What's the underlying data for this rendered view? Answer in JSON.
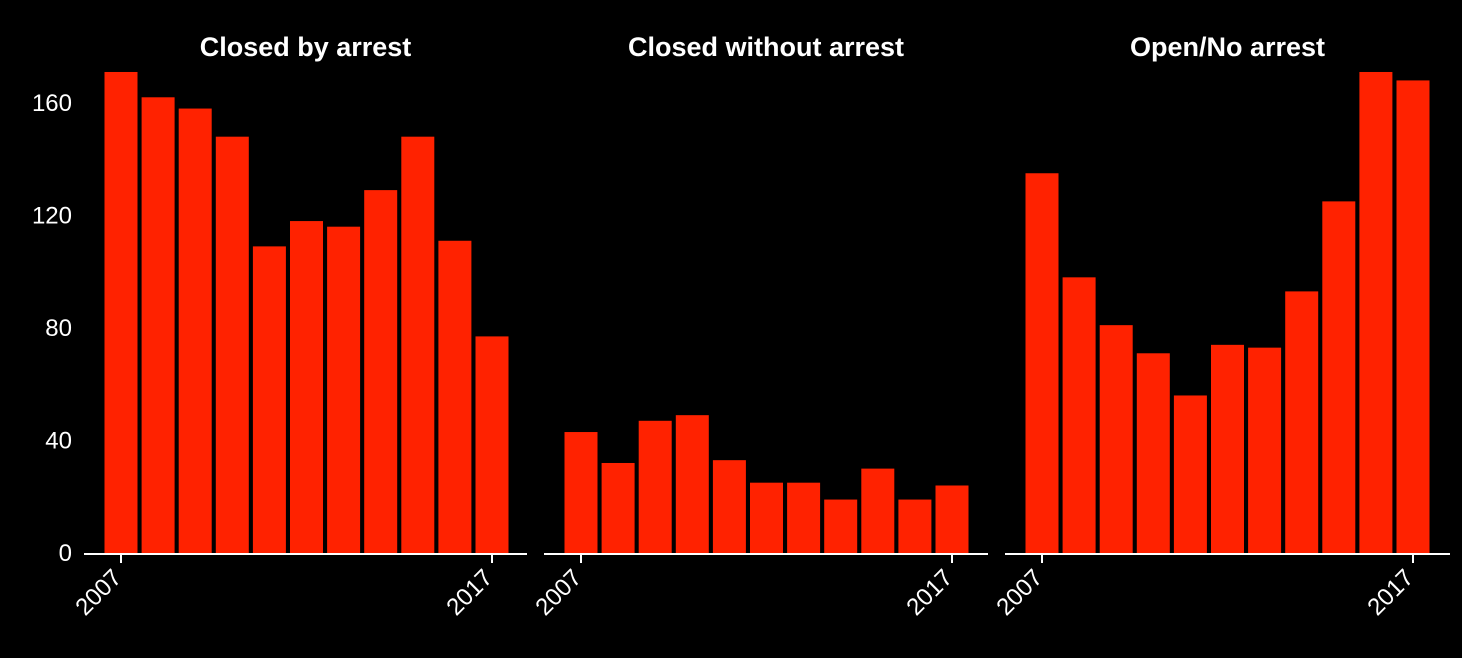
{
  "colors": {
    "background": "#000000",
    "bar": "#ff2200",
    "text": "#ffffff"
  },
  "chart_data": [
    {
      "type": "bar",
      "title": "Closed by arrest",
      "x": [
        2007,
        2008,
        2009,
        2010,
        2011,
        2012,
        2013,
        2014,
        2015,
        2016,
        2017
      ],
      "values": [
        171,
        162,
        158,
        148,
        109,
        118,
        116,
        129,
        148,
        111,
        77
      ],
      "ylim": [
        0,
        171
      ],
      "yticks": [
        0,
        40,
        80,
        120,
        160
      ],
      "xtick_labels": [
        "2007",
        "2017"
      ],
      "grid": false
    },
    {
      "type": "bar",
      "title": "Closed without arrest",
      "x": [
        2007,
        2008,
        2009,
        2010,
        2011,
        2012,
        2013,
        2014,
        2015,
        2016,
        2017
      ],
      "values": [
        43,
        32,
        47,
        49,
        33,
        25,
        25,
        19,
        30,
        19,
        24
      ],
      "ylim": [
        0,
        171
      ],
      "yticks": [
        0,
        40,
        80,
        120,
        160
      ],
      "xtick_labels": [
        "2007",
        "2017"
      ],
      "grid": false
    },
    {
      "type": "bar",
      "title": "Open/No arrest",
      "x": [
        2007,
        2008,
        2009,
        2010,
        2011,
        2012,
        2013,
        2014,
        2015,
        2016,
        2017
      ],
      "values": [
        135,
        98,
        81,
        71,
        56,
        74,
        73,
        93,
        125,
        171,
        168
      ],
      "ylim": [
        0,
        171
      ],
      "yticks": [
        0,
        40,
        80,
        120,
        160
      ],
      "xtick_labels": [
        "2007",
        "2017"
      ],
      "grid": false
    }
  ]
}
